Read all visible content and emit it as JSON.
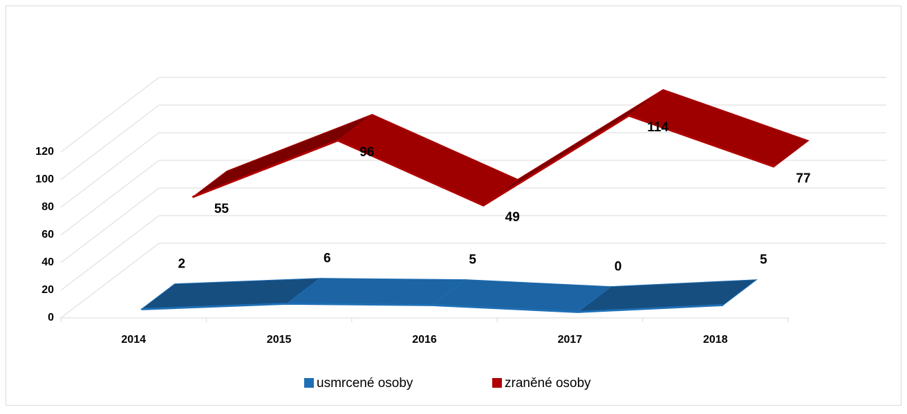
{
  "chart_data": {
    "type": "line3d",
    "categories": [
      "2014",
      "2015",
      "2016",
      "2017",
      "2018"
    ],
    "series": [
      {
        "name": "usmrcené osoby",
        "color": "#1f6fb5",
        "values": [
          2,
          6,
          5,
          0,
          5
        ]
      },
      {
        "name": "zraněné osoby",
        "color": "#b00000",
        "values": [
          55,
          96,
          49,
          114,
          77
        ]
      }
    ],
    "ylim": [
      0,
      120
    ],
    "yticks": [
      0,
      20,
      40,
      60,
      80,
      100,
      120
    ],
    "grid": true,
    "legend": "bottom"
  }
}
